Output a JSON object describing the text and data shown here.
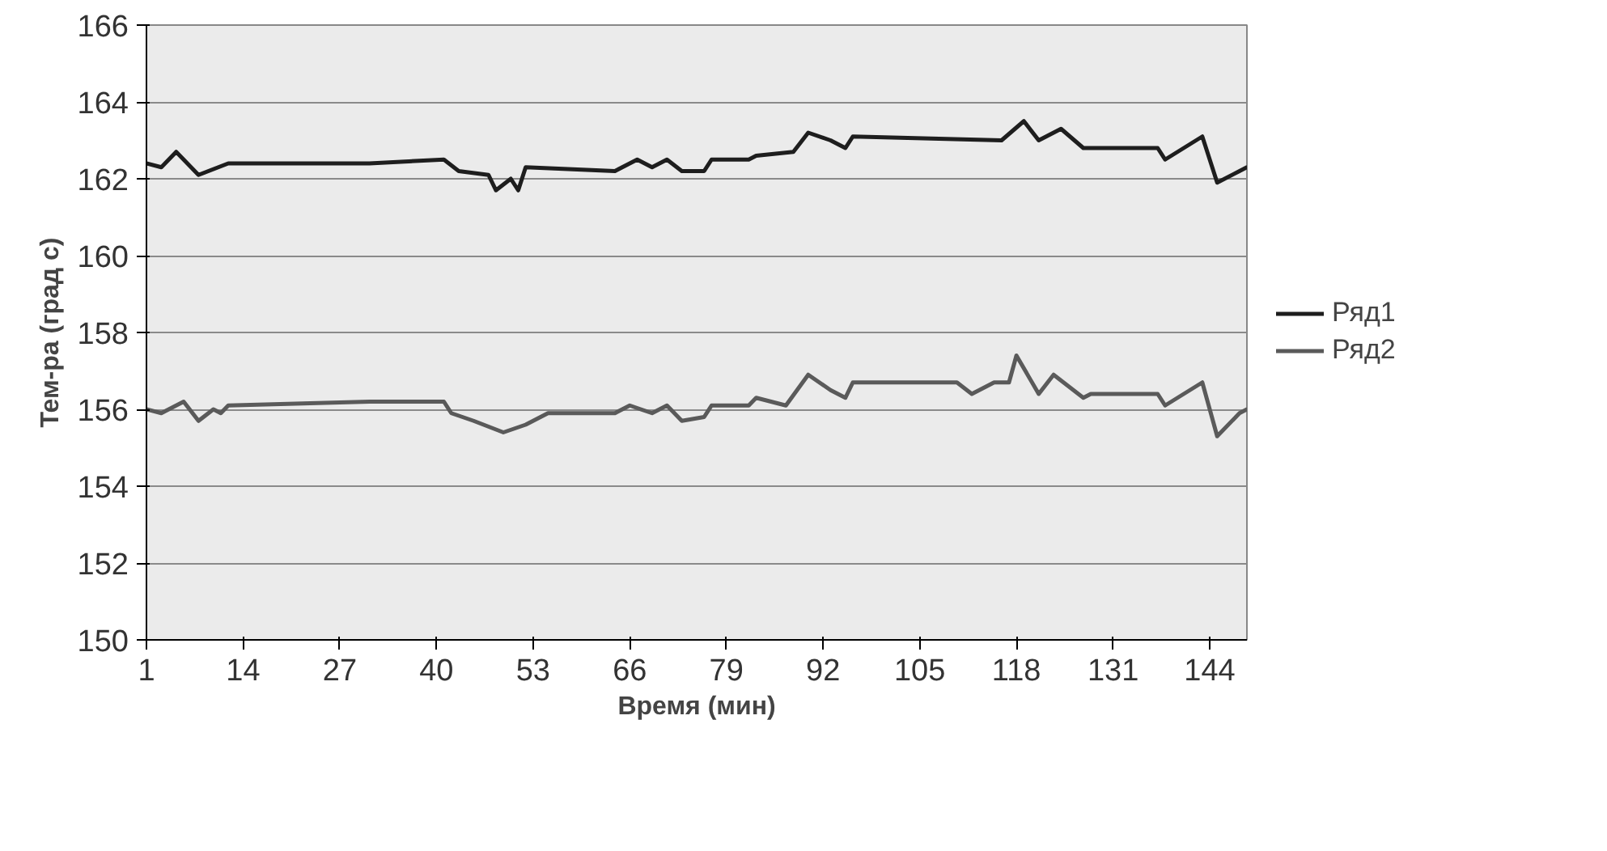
{
  "chart_data": {
    "type": "line",
    "xlabel": "Время (мин)",
    "ylabel": "Тем-ра (град с)",
    "xlim": [
      1,
      149
    ],
    "xticks": [
      1,
      14,
      27,
      40,
      53,
      66,
      79,
      92,
      105,
      118,
      131,
      144
    ],
    "ylim": [
      150,
      166
    ],
    "yticks": [
      150,
      152,
      154,
      156,
      158,
      160,
      162,
      164,
      166
    ],
    "grid": "y",
    "legend": "right",
    "marker": "none",
    "line_style": "solid",
    "series": [
      {
        "name": "Ряд1",
        "color": "#1e1e1e",
        "x": [
          1,
          3,
          5,
          8,
          12,
          31,
          41,
          43,
          47,
          48,
          50,
          51,
          52,
          64,
          67,
          69,
          71,
          73,
          76,
          77,
          82,
          83,
          88,
          90,
          93,
          95,
          96,
          116,
          119,
          121,
          124,
          127,
          137,
          138,
          143,
          145,
          148,
          149
        ],
        "values": [
          162.4,
          162.3,
          162.7,
          162.1,
          162.4,
          162.4,
          162.5,
          162.2,
          162.1,
          161.7,
          162.0,
          161.7,
          162.3,
          162.2,
          162.5,
          162.3,
          162.5,
          162.2,
          162.2,
          162.5,
          162.5,
          162.6,
          162.7,
          163.2,
          163.0,
          162.8,
          163.1,
          163.0,
          163.5,
          163.0,
          163.3,
          162.8,
          162.8,
          162.5,
          163.1,
          161.9,
          162.2,
          162.3
        ]
      },
      {
        "name": "Ряд2",
        "color": "#5a5a5a",
        "x": [
          1,
          3,
          6,
          8,
          10,
          11,
          12,
          31,
          41,
          42,
          45,
          49,
          52,
          55,
          64,
          66,
          69,
          71,
          73,
          76,
          77,
          82,
          83,
          87,
          90,
          93,
          95,
          96,
          110,
          112,
          115,
          117,
          118,
          121,
          123,
          127,
          128,
          137,
          138,
          143,
          145,
          148,
          149
        ],
        "values": [
          156.0,
          155.9,
          156.2,
          155.7,
          156.0,
          155.9,
          156.1,
          156.2,
          156.2,
          155.9,
          155.7,
          155.4,
          155.6,
          155.9,
          155.9,
          156.1,
          155.9,
          156.1,
          155.7,
          155.8,
          156.1,
          156.1,
          156.3,
          156.1,
          156.9,
          156.5,
          156.3,
          156.7,
          156.7,
          156.4,
          156.7,
          156.7,
          157.4,
          156.4,
          156.9,
          156.3,
          156.4,
          156.4,
          156.1,
          156.7,
          155.3,
          155.9,
          156.0
        ]
      }
    ]
  }
}
